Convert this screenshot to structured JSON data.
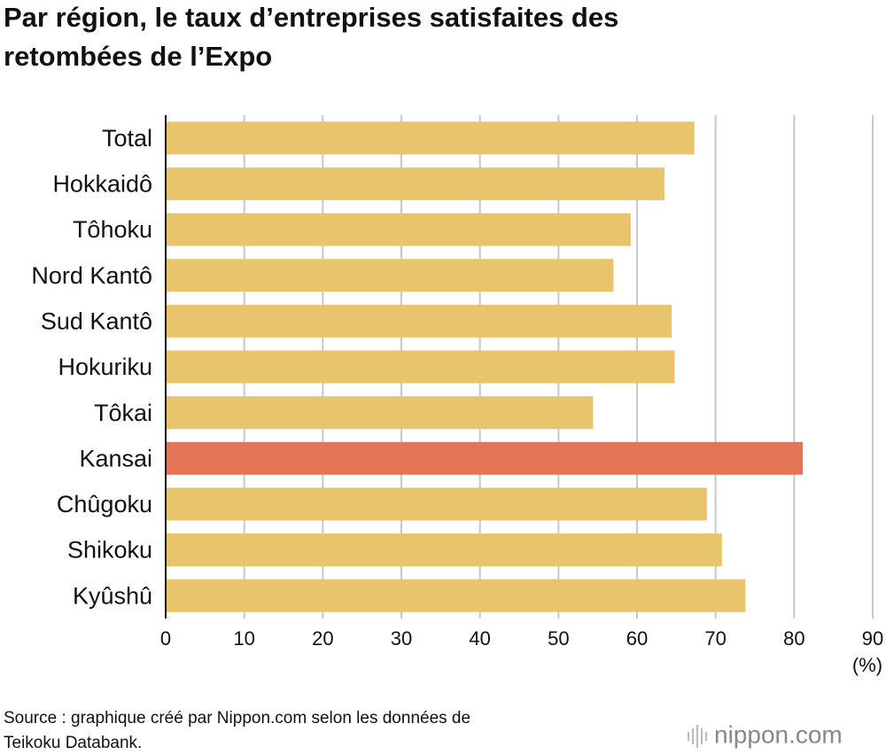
{
  "chart_data": {
    "type": "hbar",
    "title": [
      "Par région, le taux d’entreprises satisfaites des",
      "retombées de l’Expo"
    ],
    "categories": [
      "Total",
      "Hokkaidô",
      "Tôhoku",
      "Nord Kantô",
      "Sud Kantô",
      "Hokuriku",
      "Tôkai",
      "Kansai",
      "Chûgoku",
      "Shikoku",
      "Kyûshû"
    ],
    "values": [
      67.3,
      63.5,
      59.2,
      57.0,
      64.4,
      64.8,
      54.4,
      81.1,
      68.9,
      70.8,
      73.8
    ],
    "colors": [
      "#e8c46c",
      "#e8c46c",
      "#e8c46c",
      "#e8c46c",
      "#e8c46c",
      "#e8c46c",
      "#e8c46c",
      "#e57356",
      "#e8c46c",
      "#e8c46c",
      "#e8c46c"
    ],
    "xlim": [
      0,
      90
    ],
    "xticks": [
      0,
      10,
      20,
      30,
      40,
      50,
      60,
      70,
      80,
      90
    ],
    "x_unit": "(%)",
    "grid": true,
    "source": [
      "Source : graphique créé par Nippon.com selon les données de",
      "Teikoku Databank."
    ],
    "brand": "nippon.com"
  }
}
